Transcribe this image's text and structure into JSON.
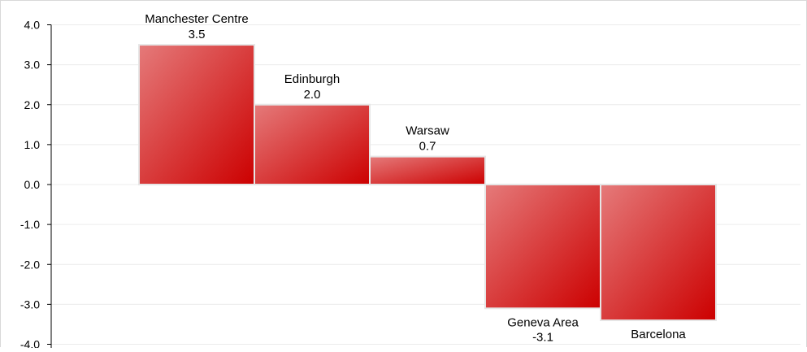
{
  "chart_data": {
    "type": "bar",
    "categories": [
      "Manchester Centre",
      "Edinburgh",
      "Warsaw",
      "Geneva Area",
      "Barcelona"
    ],
    "values": [
      3.5,
      2.0,
      0.7,
      -3.1,
      -3.4
    ],
    "value_labels": [
      "3.5",
      "2.0",
      "0.7",
      "-3.1",
      ""
    ],
    "ylim": [
      -4.0,
      4.0
    ],
    "yticks": [
      4.0,
      3.0,
      2.0,
      1.0,
      0.0,
      -1.0,
      -2.0,
      -3.0,
      -4.0
    ],
    "ytick_labels": [
      "4.0",
      "3.0",
      "2.0",
      "1.0",
      "0.0",
      "-1.0",
      "-2.0",
      "-3.0",
      "-4.0"
    ],
    "title": "",
    "xlabel": "",
    "ylabel": "",
    "grid": true,
    "legend": "none",
    "colors": {
      "bar_light": "#e57a7a",
      "bar_dark": "#cc0000",
      "bar_edge": "#e6e6e6",
      "grid": "#ececec",
      "axis": "#000000"
    }
  }
}
